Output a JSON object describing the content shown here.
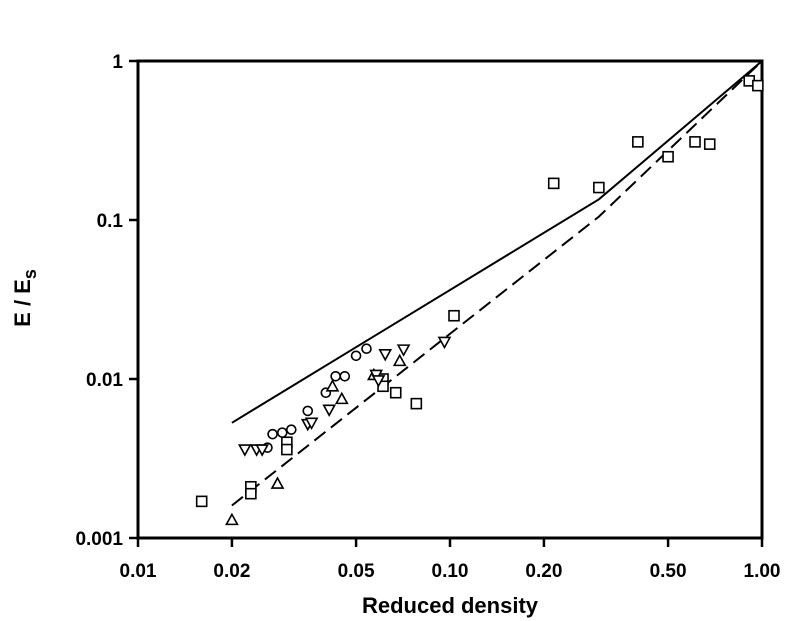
{
  "chart_data": {
    "type": "scatter",
    "title": "",
    "xlabel": "Reduced density",
    "ylabel": "E / E",
    "ylabel_subscript": "s",
    "xscale": "log",
    "yscale": "log",
    "xlim": [
      0.01,
      1.0
    ],
    "ylim": [
      0.001,
      1
    ],
    "grid": false,
    "legend": "none",
    "x_ticks": [
      0.01,
      0.02,
      0.05,
      0.1,
      0.2,
      0.5,
      1.0
    ],
    "x_tick_labels": [
      "0.01",
      "0.02",
      "0.05",
      "0.10",
      "0.20",
      "0.50",
      "1.00"
    ],
    "y_ticks": [
      0.001,
      0.01,
      0.1,
      1
    ],
    "y_tick_labels": [
      "0.001",
      "0.01",
      "0.1",
      "1"
    ],
    "series": [
      {
        "marker": "square",
        "points": [
          [
            0.016,
            0.0017
          ],
          [
            0.023,
            0.0021
          ],
          [
            0.023,
            0.0019
          ],
          [
            0.03,
            0.004
          ],
          [
            0.03,
            0.0036
          ],
          [
            0.061,
            0.01
          ],
          [
            0.061,
            0.009
          ],
          [
            0.067,
            0.0082
          ],
          [
            0.078,
            0.007
          ],
          [
            0.103,
            0.025
          ],
          [
            0.215,
            0.17
          ],
          [
            0.3,
            0.16
          ],
          [
            0.4,
            0.31
          ],
          [
            0.5,
            0.25
          ],
          [
            0.61,
            0.31
          ],
          [
            0.68,
            0.3
          ],
          [
            0.91,
            0.75
          ],
          [
            0.97,
            0.7
          ]
        ]
      },
      {
        "marker": "circle",
        "points": [
          [
            0.026,
            0.0037
          ],
          [
            0.027,
            0.0045
          ],
          [
            0.029,
            0.0046
          ],
          [
            0.031,
            0.0048
          ],
          [
            0.035,
            0.0063
          ],
          [
            0.04,
            0.0082
          ],
          [
            0.043,
            0.0104
          ],
          [
            0.046,
            0.0104
          ],
          [
            0.05,
            0.014
          ],
          [
            0.054,
            0.0155
          ]
        ]
      },
      {
        "marker": "triangle-up",
        "points": [
          [
            0.02,
            0.0013
          ],
          [
            0.028,
            0.0022
          ],
          [
            0.042,
            0.009
          ],
          [
            0.045,
            0.0075
          ],
          [
            0.057,
            0.0106
          ],
          [
            0.069,
            0.013
          ]
        ]
      },
      {
        "marker": "triangle-down",
        "points": [
          [
            0.022,
            0.0036
          ],
          [
            0.024,
            0.0036
          ],
          [
            0.025,
            0.0036
          ],
          [
            0.035,
            0.0052
          ],
          [
            0.036,
            0.0053
          ],
          [
            0.041,
            0.0064
          ],
          [
            0.058,
            0.0106
          ],
          [
            0.059,
            0.0098
          ],
          [
            0.062,
            0.0143
          ],
          [
            0.071,
            0.0153
          ],
          [
            0.096,
            0.0171
          ]
        ]
      },
      {
        "marker": "line-solid",
        "points": [
          [
            0.02,
            0.0053
          ],
          [
            0.3,
            0.135
          ],
          [
            1.0,
            1.0
          ]
        ]
      },
      {
        "marker": "line-dashed",
        "points": [
          [
            0.02,
            0.0016
          ],
          [
            0.3,
            0.105
          ],
          [
            1.0,
            1.0
          ]
        ]
      }
    ]
  }
}
